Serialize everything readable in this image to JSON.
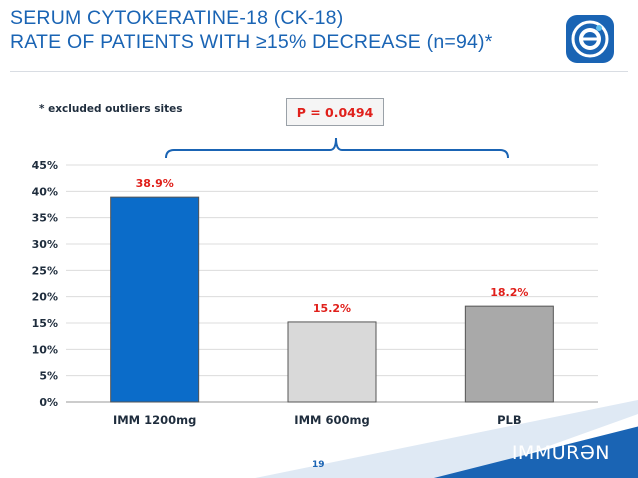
{
  "title": {
    "line1": "SERUM CYTOKERATINE-18 (CK-18)",
    "line2": "RATE OF PATIENTS WITH ≥15% DECREASE (n=94)*"
  },
  "note": "* excluded outliers sites",
  "p_value": "P = 0.0494",
  "brand": "IMMURƏN",
  "page_number": "19",
  "colors": {
    "title": "#1a64b4",
    "label": "#e0201b",
    "bar1": "#0b6cc9",
    "bar2": "#d9d9d9",
    "bar3": "#a9a9a9"
  },
  "chart_data": {
    "type": "bar",
    "title": "",
    "xlabel": "",
    "ylabel": "",
    "categories": [
      "IMM 1200mg",
      "IMM 600mg",
      "PLB"
    ],
    "values": [
      38.9,
      15.2,
      18.2
    ],
    "data_labels": [
      "38.9%",
      "15.2%",
      "18.2%"
    ],
    "ylim": [
      0,
      45
    ],
    "yticks": [
      0,
      5,
      10,
      15,
      20,
      25,
      30,
      35,
      40,
      45
    ],
    "ytick_labels": [
      "0%",
      "5%",
      "10%",
      "15%",
      "20%",
      "25%",
      "30%",
      "35%",
      "40%",
      "45%"
    ],
    "grid": true,
    "legend": "none"
  }
}
